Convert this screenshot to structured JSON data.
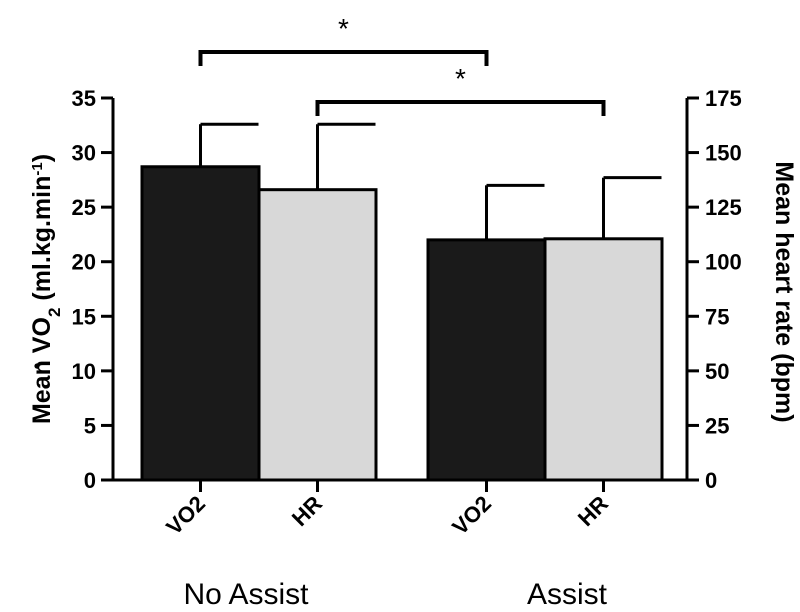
{
  "chart_data": {
    "type": "bar",
    "groups": [
      "No Assist",
      "Assist"
    ],
    "categories": [
      "VO2",
      "HR",
      "VO2",
      "HR"
    ],
    "left_axis": {
      "label_prefix": "Mean ",
      "label_v": "V",
      "label_o": "O",
      "label_sub": "2",
      "label_unit": " (ml.kg.min",
      "label_sup": "-1",
      "label_close": ")",
      "ylim": [
        0,
        35
      ],
      "ticks": [
        "0",
        "5",
        "10",
        "15",
        "20",
        "25",
        "30",
        "35"
      ]
    },
    "right_axis": {
      "label": "Mean heart rate (bpm)",
      "ylim": [
        0,
        175
      ],
      "ticks": [
        "0",
        "25",
        "50",
        "75",
        "100",
        "125",
        "150",
        "175"
      ]
    },
    "bars": [
      {
        "group": "No Assist",
        "category": "VO2",
        "axis": "left",
        "value": 28.7,
        "error": 3.9,
        "color": "#1a1a1a"
      },
      {
        "group": "No Assist",
        "category": "HR",
        "axis": "right",
        "value": 133,
        "error": 30,
        "color": "#d8d8d8"
      },
      {
        "group": "Assist",
        "category": "VO2",
        "axis": "left",
        "value": 22.0,
        "error": 5.0,
        "color": "#1a1a1a"
      },
      {
        "group": "Assist",
        "category": "HR",
        "axis": "right",
        "value": 110.5,
        "error": 28,
        "color": "#d8d8d8"
      }
    ],
    "significance": [
      {
        "from_bar": 0,
        "to_bar": 2,
        "label": "*"
      },
      {
        "from_bar": 1,
        "to_bar": 3,
        "label": "*"
      }
    ],
    "colors": {
      "vo2": "#1a1a1a",
      "hr": "#d8d8d8"
    },
    "grid": false,
    "legend": "none"
  }
}
